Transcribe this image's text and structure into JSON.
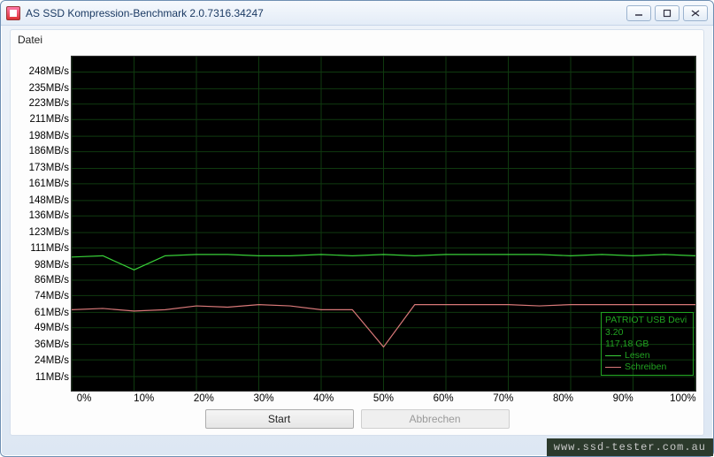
{
  "window": {
    "title": "AS SSD Kompression-Benchmark 2.0.7316.34247"
  },
  "menu": {
    "file_label": "Datei"
  },
  "chart": {
    "type": "line",
    "background_color": "#000000",
    "grid_color": "#0f3a0f",
    "axis_label_color": "#000000",
    "axis_label_fontsize": 11.5,
    "y_unit_suffix": "MB/s",
    "y_ticks": [
      11,
      24,
      36,
      49,
      61,
      74,
      86,
      98,
      111,
      123,
      136,
      148,
      161,
      173,
      186,
      198,
      211,
      223,
      235,
      248
    ],
    "ylim": [
      0,
      260
    ],
    "x_ticks_pct": [
      0,
      10,
      20,
      30,
      40,
      50,
      60,
      70,
      80,
      90,
      100
    ],
    "xlim": [
      0,
      100
    ],
    "series": {
      "read": {
        "label": "Lesen",
        "color": "#38d038",
        "line_width": 1.2,
        "values_at_5pct": [
          104,
          105,
          94,
          105,
          106,
          106,
          105,
          105,
          106,
          105,
          106,
          105,
          106,
          106,
          106,
          106,
          105,
          106,
          105,
          106,
          105
        ]
      },
      "write": {
        "label": "Schreiben",
        "color": "#d87878",
        "line_width": 1.2,
        "values_at_5pct": [
          63,
          64,
          62,
          63,
          66,
          65,
          67,
          66,
          63,
          63,
          34,
          67,
          67,
          67,
          67,
          66,
          67,
          67,
          67,
          67,
          67
        ]
      }
    },
    "info_box": {
      "border_color": "#21a321",
      "text_color": "#21a321",
      "device_line": "PATRIOT USB Devi",
      "firmware_line": "3.20",
      "capacity_line": "117,18 GB"
    }
  },
  "buttons": {
    "start_label": "Start",
    "cancel_label": "Abbrechen"
  },
  "watermark": {
    "text": "www.ssd-tester.com.au",
    "text_color": "#c9c9c9",
    "background_color": "#2c3a2c"
  }
}
